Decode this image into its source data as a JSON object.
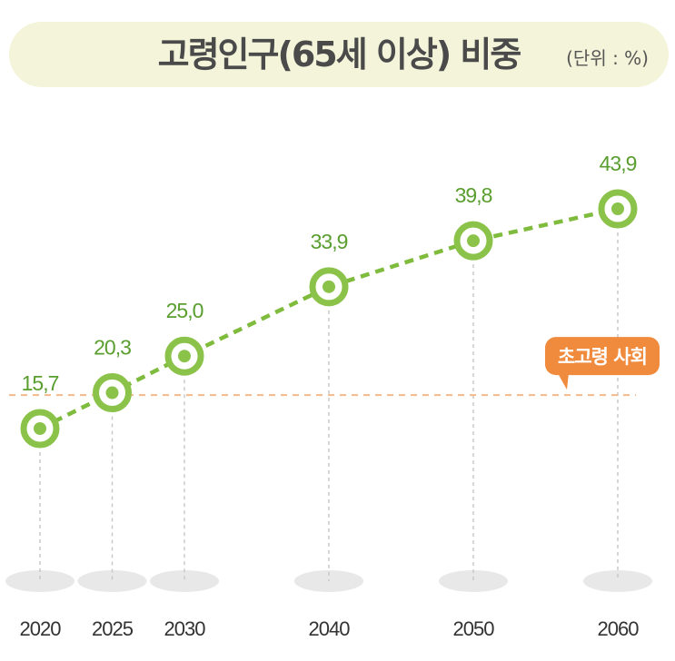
{
  "title": "고령인구(65세 이상) 비중",
  "unit": "(단위 : %)",
  "threshold_label": "초고령 사회",
  "colors": {
    "line": "#7fbb3d",
    "marker_ring": "#8bc34a",
    "value_text": "#5a9e2f",
    "threshold": "#f08a3c",
    "title_bg": "#f3f4d9"
  },
  "chart_data": {
    "type": "line",
    "title": "고령인구(65세 이상) 비중",
    "x": [
      2020,
      2025,
      2030,
      2040,
      2050,
      2060
    ],
    "x_labels": [
      "2020",
      "2025",
      "2030",
      "2040",
      "2050",
      "2060"
    ],
    "values": [
      15.7,
      20.3,
      25.0,
      33.9,
      39.8,
      43.9
    ],
    "value_labels": [
      "15,7",
      "20,3",
      "25,0",
      "33,9",
      "39,8",
      "43,9"
    ],
    "threshold": {
      "value": 20,
      "label": "초고령 사회"
    },
    "unit": "%",
    "grid": false,
    "legend": "none"
  }
}
